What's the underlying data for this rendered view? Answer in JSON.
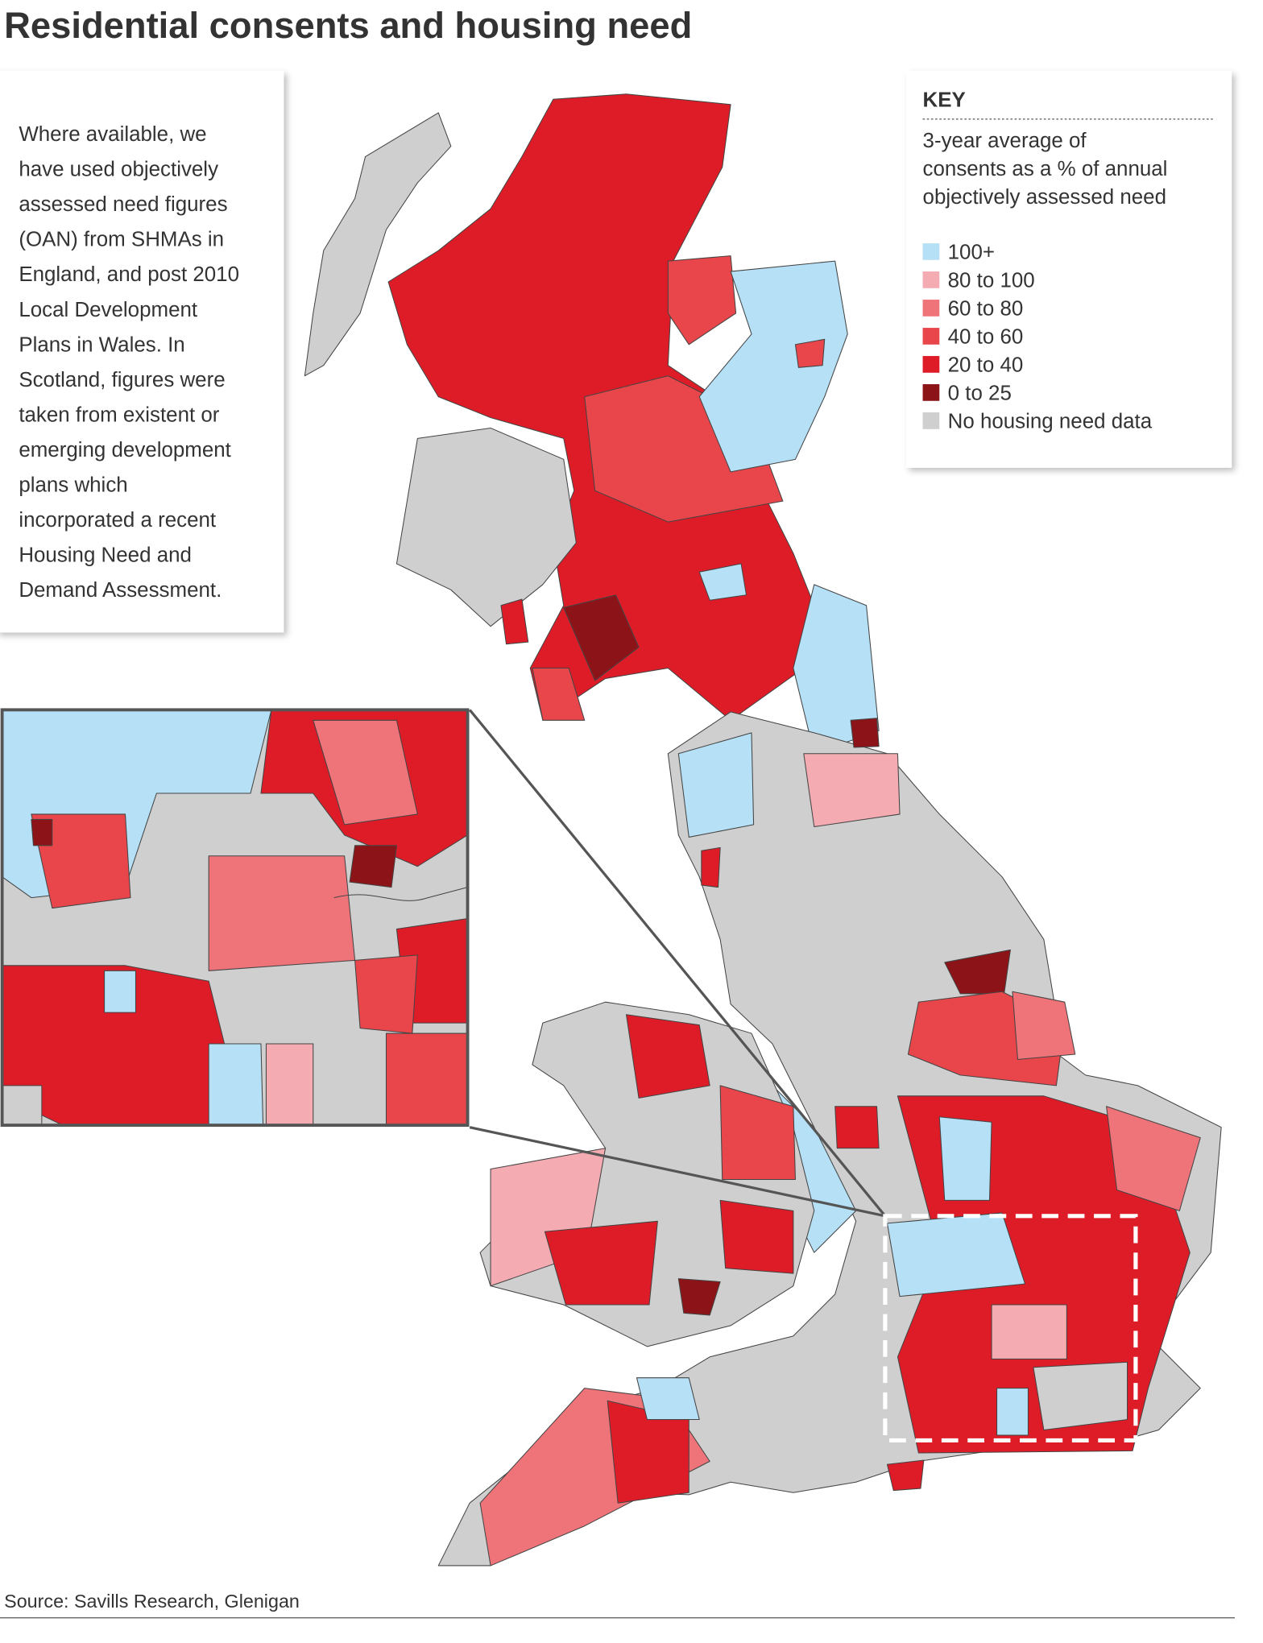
{
  "header": {
    "title": "Residential consents and housing need"
  },
  "note": {
    "lines": [
      "Where available, we",
      "have used objectively",
      "assessed need figures",
      "(OAN) from SHMAs in",
      "England, and post 2010",
      "Local Development",
      "Plans in Wales. In",
      "Scotland, figures were",
      "taken from existent or",
      "emerging development",
      "plans which",
      "incorporated a recent",
      "Housing Need and",
      "Demand Assessment."
    ]
  },
  "key": {
    "title": "KEY",
    "subtitle": [
      "3-year average of",
      "consents as a % of annual",
      "objectively assessed need"
    ],
    "items": [
      {
        "label": "100+",
        "color": "#b5e0f6"
      },
      {
        "label": "80 to 100",
        "color": "#f4abb1"
      },
      {
        "label": "60 to 80",
        "color": "#ee7479"
      },
      {
        "label": "40 to 60",
        "color": "#e8464b"
      },
      {
        "label": "20 to 40",
        "color": "#de1c28"
      },
      {
        "label": "0 to 25",
        "color": "#8c1418"
      },
      {
        "label": "No housing need data",
        "color": "#cfcfcf"
      }
    ]
  },
  "footer": {
    "source": "Source: Savills Research, Glenigan"
  }
}
